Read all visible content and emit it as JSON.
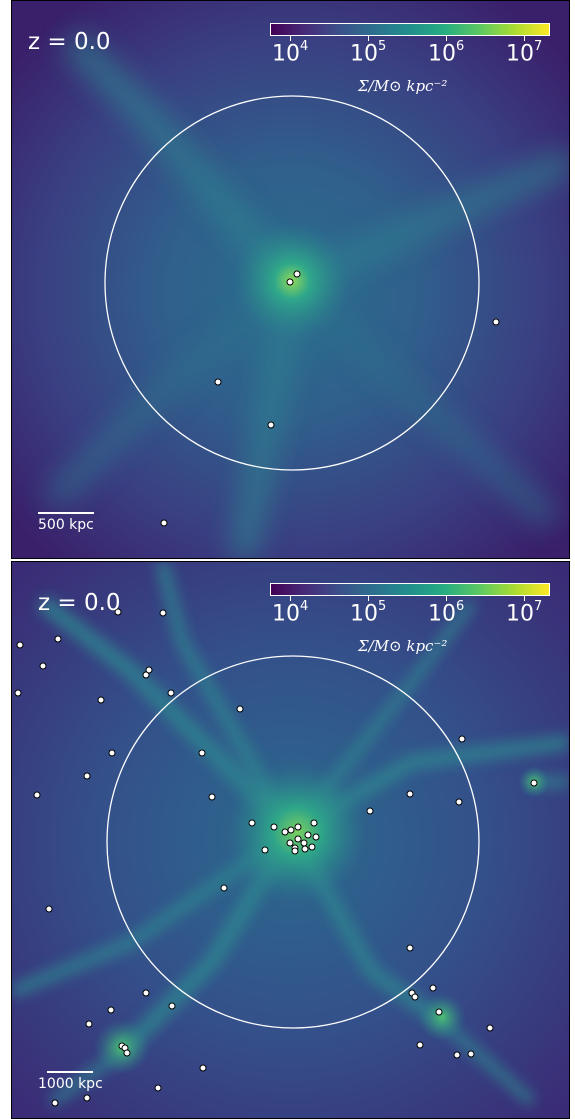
{
  "panels": [
    {
      "redshift": "z = 0.0",
      "colorbar": {
        "ticks": [
          "4",
          "5",
          "6",
          "7"
        ],
        "tick_base": "10",
        "label": "Σ/M⊙ kpc⁻²"
      },
      "scale_bar": "500 kpc"
    },
    {
      "redshift": "z = 0.0",
      "colorbar": {
        "ticks": [
          "4",
          "5",
          "6",
          "7"
        ],
        "tick_base": "10",
        "label": "Σ/M⊙ kpc⁻²"
      },
      "scale_bar": "1000 kpc"
    }
  ],
  "colors": {
    "background": "#3b2070",
    "filament": "#2f7f8f",
    "core": "#7ad060",
    "marker": "#ffffff"
  }
}
